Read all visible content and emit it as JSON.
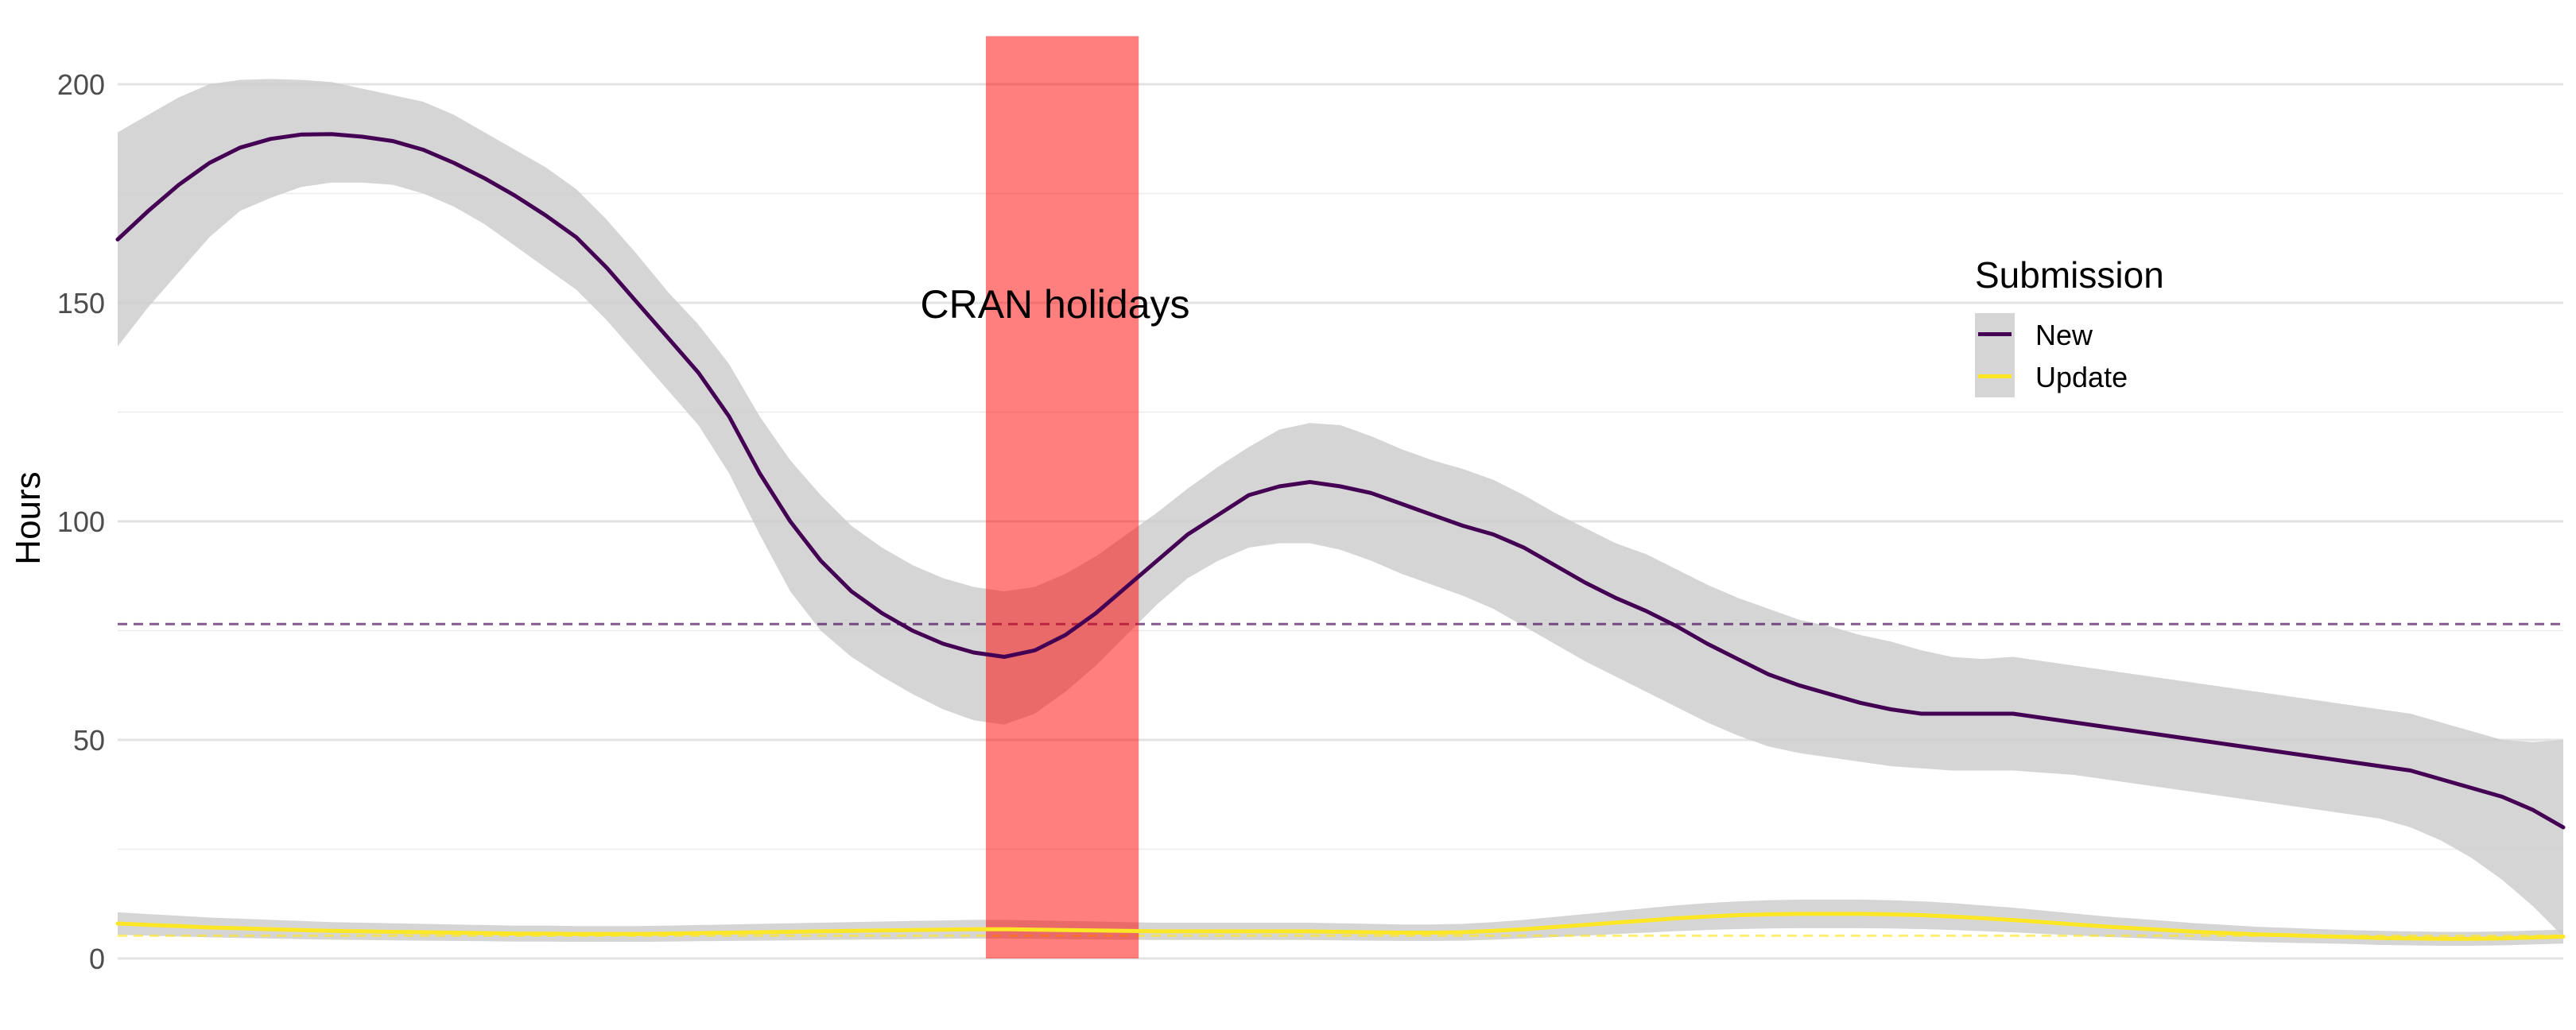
{
  "chart_data": {
    "type": "line",
    "ylabel": "Hours",
    "xlabel": "",
    "ylim": [
      0,
      211
    ],
    "yticks": [
      0,
      50,
      100,
      150,
      200
    ],
    "grid": true,
    "legend": {
      "title": "Submission",
      "position": "top-right"
    },
    "annotation": {
      "text": "CRAN holidays"
    },
    "x": [
      0,
      1,
      2,
      3,
      4,
      5,
      6,
      7,
      8,
      9,
      10,
      11,
      12,
      13,
      14,
      15,
      16,
      17,
      18,
      19,
      20,
      21,
      22,
      23,
      24,
      25,
      26,
      27,
      28,
      29,
      30,
      31,
      32,
      33,
      34,
      35,
      36,
      37,
      38,
      39,
      40,
      41,
      42,
      43,
      44,
      45,
      46,
      47,
      48,
      49,
      50,
      51,
      52,
      53,
      54,
      55,
      56,
      57,
      58,
      59,
      60,
      61,
      62,
      63,
      64,
      65,
      66,
      67,
      68,
      69,
      70,
      71,
      72,
      73,
      74,
      75,
      76,
      77,
      78,
      79,
      80
    ],
    "holiday_range": [
      28.4,
      33.4
    ],
    "series": [
      {
        "name": "New",
        "color": "#440154",
        "mean": 76.5,
        "values": [
          164.5,
          171,
          177,
          182,
          185.5,
          187.5,
          188.5,
          188.6,
          188,
          187,
          185,
          182,
          178.5,
          174.5,
          170,
          165,
          158,
          150,
          142,
          134,
          124,
          111,
          100,
          91,
          84,
          79,
          75,
          72,
          70,
          69,
          70.5,
          74,
          79,
          85,
          91,
          97,
          101.5,
          106,
          108,
          109,
          108,
          106.5,
          104,
          101.5,
          99,
          97,
          94,
          90,
          86,
          82.5,
          79.5,
          76,
          72,
          68.5,
          65,
          62.5,
          60.5,
          58.5,
          57,
          56,
          56,
          56,
          56,
          55,
          54,
          53,
          52,
          51,
          50,
          49,
          48,
          47,
          46,
          45,
          44,
          43,
          41,
          39,
          37,
          34,
          30
        ],
        "lower": [
          140,
          149,
          157,
          165,
          171,
          174,
          176.5,
          177.5,
          177.5,
          177,
          175,
          172,
          168,
          163,
          158,
          153,
          146,
          138,
          130,
          122,
          111,
          97,
          84,
          75,
          69,
          64.5,
          60.5,
          57,
          54.5,
          53.5,
          56,
          61,
          67,
          74,
          81,
          87,
          91,
          94,
          95,
          95,
          93.5,
          91,
          88,
          85.5,
          83,
          80,
          76,
          72,
          68,
          64.5,
          61,
          57.5,
          54,
          51,
          48.5,
          47,
          46,
          45,
          44,
          43.5,
          43,
          43,
          43,
          42.5,
          42,
          41,
          40,
          39,
          38,
          37,
          36,
          35,
          34,
          33,
          32,
          30,
          27,
          23,
          18,
          12,
          5
        ],
        "upper": [
          189,
          193,
          197,
          200,
          201,
          201.2,
          201,
          200.5,
          199,
          197.5,
          196,
          193,
          189,
          185,
          181,
          176,
          169,
          161,
          152.5,
          145,
          136,
          124,
          114,
          106,
          99,
          94,
          90,
          87,
          85,
          84,
          85,
          88,
          92,
          97,
          102,
          107.5,
          112.5,
          117,
          121,
          122.5,
          122,
          119.5,
          116.5,
          114,
          112,
          109.5,
          106,
          102,
          98.5,
          95,
          92.5,
          89,
          85.5,
          82.5,
          80,
          77.5,
          76,
          74,
          72.5,
          70.5,
          69,
          68.5,
          69,
          68,
          67,
          66,
          65,
          64,
          63,
          62,
          61,
          60,
          59,
          58,
          57,
          56,
          54,
          52,
          50,
          49.5,
          50
        ]
      },
      {
        "name": "Update",
        "color": "#fde725",
        "mean": 5.2,
        "values": [
          8,
          7.7,
          7.4,
          7.1,
          6.9,
          6.7,
          6.5,
          6.3,
          6.2,
          6.1,
          6,
          5.9,
          5.8,
          5.7,
          5.7,
          5.6,
          5.6,
          5.6,
          5.7,
          5.8,
          5.9,
          6,
          6.1,
          6.2,
          6.3,
          6.4,
          6.5,
          6.6,
          6.7,
          6.7,
          6.6,
          6.5,
          6.4,
          6.3,
          6.2,
          6.2,
          6.2,
          6.2,
          6.2,
          6.2,
          6.1,
          6,
          5.9,
          5.9,
          6,
          6.3,
          6.7,
          7.2,
          7.7,
          8.2,
          8.7,
          9.2,
          9.6,
          9.9,
          10.1,
          10.2,
          10.2,
          10.2,
          10.1,
          9.9,
          9.6,
          9.2,
          8.8,
          8.3,
          7.8,
          7.3,
          6.9,
          6.5,
          6.1,
          5.8,
          5.5,
          5.3,
          5.1,
          4.9,
          4.7,
          4.6,
          4.5,
          4.5,
          4.6,
          4.8,
          5
        ]
      }
    ]
  }
}
